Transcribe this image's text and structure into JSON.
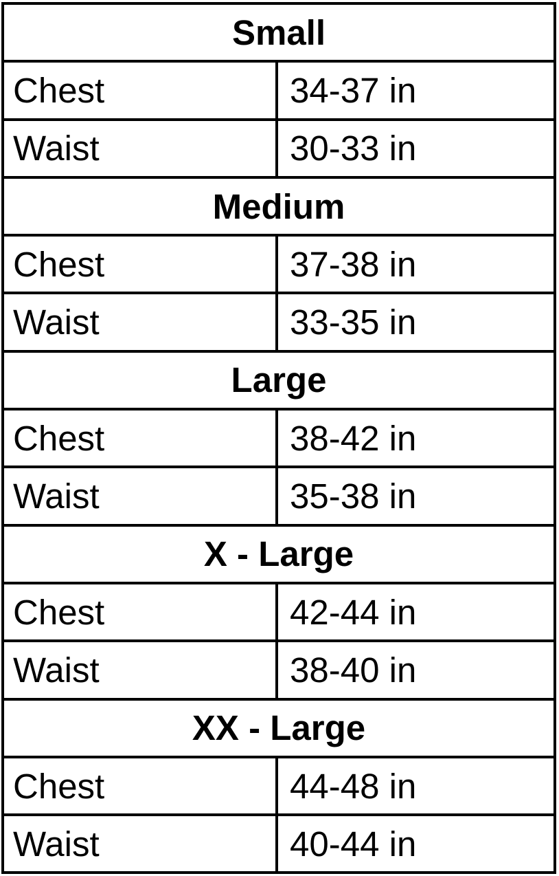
{
  "colors": {
    "border": "#000000",
    "background": "#ffffff",
    "text": "#000000"
  },
  "chart_data": {
    "type": "table",
    "description": "Clothing size chart with chest and waist ranges per size",
    "sections": [
      {
        "title": "Small",
        "rows": [
          {
            "label": "Chest",
            "value": "34-37 in"
          },
          {
            "label": "Waist",
            "value": "30-33 in"
          }
        ]
      },
      {
        "title": "Medium",
        "rows": [
          {
            "label": "Chest",
            "value": "37-38 in"
          },
          {
            "label": "Waist",
            "value": "33-35 in"
          }
        ]
      },
      {
        "title": "Large",
        "rows": [
          {
            "label": "Chest",
            "value": "38-42 in"
          },
          {
            "label": "Waist",
            "value": "35-38 in"
          }
        ]
      },
      {
        "title": "X - Large",
        "rows": [
          {
            "label": "Chest",
            "value": "42-44 in"
          },
          {
            "label": "Waist",
            "value": "38-40 in"
          }
        ]
      },
      {
        "title": "XX - Large",
        "rows": [
          {
            "label": "Chest",
            "value": "44-48 in"
          },
          {
            "label": "Waist",
            "value": "40-44 in"
          }
        ]
      }
    ]
  }
}
